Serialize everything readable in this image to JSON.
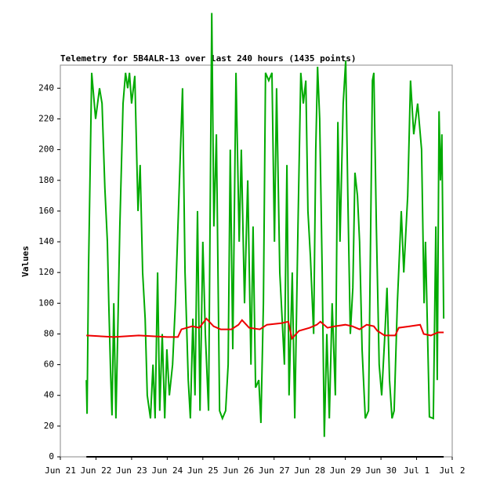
{
  "chart_data": {
    "type": "line",
    "title": "Telemetry for 5B4ALR-13 over last 240 hours (1435 points)",
    "y_label": "Values",
    "xlim": [
      0,
      11
    ],
    "xticks": [
      {
        "value": 0,
        "label": "Jun 21"
      },
      {
        "value": 1,
        "label": "Jun 22"
      },
      {
        "value": 2,
        "label": "Jun 23"
      },
      {
        "value": 3,
        "label": "Jun 24"
      },
      {
        "value": 4,
        "label": "Jun 25"
      },
      {
        "value": 5,
        "label": "Jun 26"
      },
      {
        "value": 6,
        "label": "Jun 27"
      },
      {
        "value": 7,
        "label": "Jun 28"
      },
      {
        "value": 8,
        "label": "Jun 29"
      },
      {
        "value": 9,
        "label": "Jun 30"
      },
      {
        "value": 10,
        "label": "Jul 1"
      },
      {
        "value": 11,
        "label": "Jul 2"
      }
    ],
    "ylim": [
      0,
      255
    ],
    "yticks": [
      0,
      20,
      40,
      60,
      80,
      100,
      120,
      140,
      160,
      180,
      200,
      220,
      240
    ],
    "series": [
      {
        "color": "#00aa00",
        "x": [
          0.73,
          0.75,
          0.79,
          0.88,
          0.99,
          1.1,
          1.17,
          1.25,
          1.32,
          1.36,
          1.41,
          1.45,
          1.5,
          1.56,
          1.61,
          1.67,
          1.76,
          1.83,
          1.89,
          1.94,
          2.0,
          2.09,
          2.18,
          2.24,
          2.31,
          2.38,
          2.44,
          2.53,
          2.6,
          2.66,
          2.73,
          2.79,
          2.86,
          2.93,
          2.99,
          3.06,
          3.15,
          3.23,
          3.43,
          3.5,
          3.59,
          3.65,
          3.72,
          3.78,
          3.85,
          3.92,
          4.0,
          4.07,
          4.16,
          4.25,
          4.31,
          4.38,
          4.47,
          4.55,
          4.64,
          4.71,
          4.77,
          4.84,
          4.93,
          5.02,
          5.08,
          5.17,
          5.26,
          5.35,
          5.41,
          5.48,
          5.57,
          5.63,
          5.7,
          5.76,
          5.85,
          5.94,
          6.01,
          6.07,
          6.16,
          6.29,
          6.36,
          6.42,
          6.51,
          6.58,
          6.67,
          6.75,
          6.82,
          6.89,
          6.95,
          7.02,
          7.11,
          7.17,
          7.22,
          7.28,
          7.35,
          7.41,
          7.48,
          7.55,
          7.63,
          7.72,
          7.79,
          7.85,
          7.94,
          8.01,
          8.07,
          8.14,
          8.21,
          8.27,
          8.34,
          8.4,
          8.47,
          8.56,
          8.65,
          8.76,
          8.8,
          8.87,
          8.95,
          9.02,
          9.11,
          9.17,
          9.24,
          9.31,
          9.37,
          9.46,
          9.57,
          9.64,
          9.75,
          9.83,
          9.92,
          10.03,
          10.14,
          10.21,
          10.25,
          10.36,
          10.47,
          10.54,
          10.58,
          10.63,
          10.67,
          10.71,
          10.76
        ],
        "values": [
          50,
          28,
          120,
          250,
          220,
          240,
          230,
          175,
          140,
          100,
          55,
          27,
          100,
          25,
          80,
          150,
          230,
          250,
          240,
          250,
          230,
          248,
          160,
          190,
          120,
          90,
          40,
          25,
          60,
          25,
          120,
          30,
          80,
          25,
          70,
          40,
          60,
          100,
          240,
          120,
          50,
          25,
          90,
          40,
          160,
          30,
          140,
          80,
          30,
          289,
          150,
          210,
          30,
          25,
          30,
          60,
          200,
          70,
          250,
          140,
          200,
          100,
          180,
          60,
          150,
          45,
          50,
          22,
          100,
          250,
          245,
          250,
          140,
          240,
          120,
          60,
          190,
          40,
          120,
          25,
          150,
          250,
          230,
          245,
          160,
          130,
          80,
          200,
          254,
          220,
          120,
          13,
          80,
          25,
          100,
          40,
          218,
          140,
          230,
          258,
          170,
          80,
          110,
          185,
          170,
          140,
          70,
          25,
          30,
          245,
          250,
          150,
          60,
          40,
          80,
          110,
          50,
          25,
          30,
          100,
          160,
          120,
          170,
          245,
          210,
          230,
          200,
          100,
          140,
          26,
          25,
          150,
          50,
          225,
          180,
          210,
          90
        ]
      },
      {
        "color": "#ee0000",
        "x": [
          0.73,
          1.5,
          2.2,
          3.0,
          3.3,
          3.4,
          3.7,
          3.9,
          4.0,
          4.1,
          4.3,
          4.5,
          4.8,
          5.0,
          5.1,
          5.3,
          5.6,
          5.8,
          6.2,
          6.4,
          6.5,
          6.7,
          7.0,
          7.2,
          7.3,
          7.5,
          7.7,
          8.0,
          8.2,
          8.4,
          8.6,
          8.8,
          8.9,
          9.1,
          9.4,
          9.5,
          9.8,
          10.1,
          10.2,
          10.4,
          10.6,
          10.76
        ],
        "values": [
          79,
          78,
          79,
          78,
          78,
          83,
          85,
          84,
          87,
          90,
          85,
          83,
          83,
          86,
          89,
          84,
          83,
          86,
          87,
          88,
          77,
          82,
          84,
          86,
          88,
          84,
          85,
          86,
          85,
          83,
          86,
          85,
          82,
          79,
          79,
          84,
          85,
          86,
          80,
          79,
          81,
          81
        ]
      },
      {
        "color": "#000000",
        "x": [
          0.73,
          10.76
        ],
        "values": [
          0,
          0
        ]
      }
    ]
  }
}
